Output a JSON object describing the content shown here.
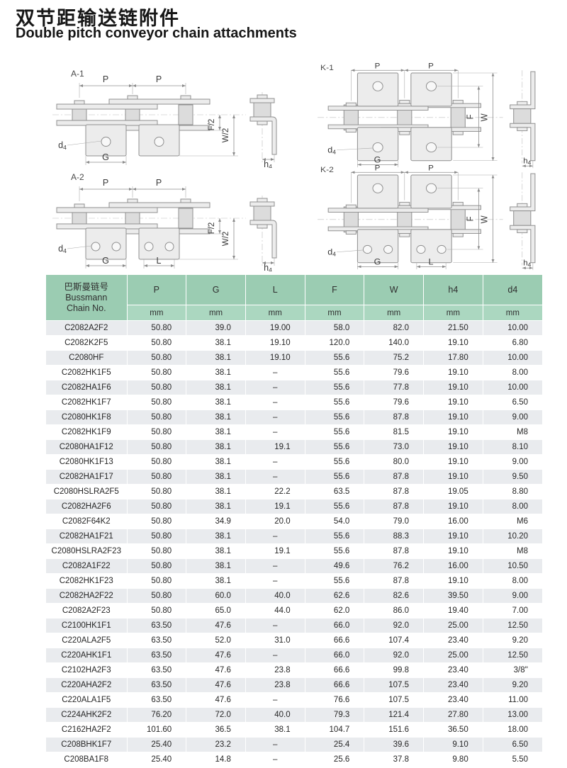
{
  "title": {
    "zh": "双节距输送链附件",
    "en": "Double pitch conveyor chain attachments"
  },
  "diagrams": {
    "a1": {
      "id": "A-1",
      "p1": "P",
      "p2": "P",
      "f": "F/2",
      "w": "W/2",
      "g": "G",
      "d": "d",
      "dsub": "4",
      "h": "h",
      "hsub": "4"
    },
    "k1": {
      "id": "K-1",
      "p1": "P",
      "p2": "P",
      "f": "F",
      "w": "W",
      "g": "G",
      "d": "d",
      "dsub": "4",
      "h": "h",
      "hsub": "4"
    },
    "a2": {
      "id": "A-2",
      "p1": "P",
      "p2": "P",
      "f": "F/2",
      "w": "W/2",
      "g": "G",
      "l": "L",
      "d": "d",
      "dsub": "4",
      "h": "h",
      "hsub": "4"
    },
    "k2": {
      "id": "K-2",
      "p1": "P",
      "p2": "P",
      "f": "F",
      "w": "W",
      "g": "G",
      "l": "L",
      "d": "d",
      "dsub": "4",
      "h": "h",
      "hsub": "4"
    }
  },
  "table": {
    "chain_header": {
      "zh": "巴斯曼链号",
      "en1": "Bussmann",
      "en2": "Chain No."
    },
    "columns": [
      {
        "label": "P",
        "unit": "mm"
      },
      {
        "label": "G",
        "unit": "mm"
      },
      {
        "label": "L",
        "unit": "mm"
      },
      {
        "label": "F",
        "unit": "mm"
      },
      {
        "label": "W",
        "unit": "mm"
      },
      {
        "label": "h4",
        "unit": "mm"
      },
      {
        "label": "d4",
        "unit": "mm"
      }
    ],
    "rows": [
      {
        "chain_no": "C2082A2F2",
        "values": [
          "50.80",
          "39.0",
          "19.00",
          "58.0",
          "82.0",
          "21.50",
          "10.00"
        ]
      },
      {
        "chain_no": "C2082K2F5",
        "values": [
          "50.80",
          "38.1",
          "19.10",
          "120.0",
          "140.0",
          "19.10",
          "6.80"
        ]
      },
      {
        "chain_no": "C2080HF",
        "values": [
          "50.80",
          "38.1",
          "19.10",
          "55.6",
          "75.2",
          "17.80",
          "10.00"
        ]
      },
      {
        "chain_no": "C2082HK1F5",
        "values": [
          "50.80",
          "38.1",
          "–",
          "55.6",
          "79.6",
          "19.10",
          "8.00"
        ]
      },
      {
        "chain_no": "C2082HA1F6",
        "values": [
          "50.80",
          "38.1",
          "–",
          "55.6",
          "77.8",
          "19.10",
          "10.00"
        ]
      },
      {
        "chain_no": "C2082HK1F7",
        "values": [
          "50.80",
          "38.1",
          "–",
          "55.6",
          "79.6",
          "19.10",
          "6.50"
        ]
      },
      {
        "chain_no": "C2080HK1F8",
        "values": [
          "50.80",
          "38.1",
          "–",
          "55.6",
          "87.8",
          "19.10",
          "9.00"
        ]
      },
      {
        "chain_no": "C2082HK1F9",
        "values": [
          "50.80",
          "38.1",
          "–",
          "55.6",
          "81.5",
          "19.10",
          "M8"
        ]
      },
      {
        "chain_no": "C2080HA1F12",
        "values": [
          "50.80",
          "38.1",
          "19.1",
          "55.6",
          "73.0",
          "19.10",
          "8.10"
        ]
      },
      {
        "chain_no": "C2080HK1F13",
        "values": [
          "50.80",
          "38.1",
          "–",
          "55.6",
          "80.0",
          "19.10",
          "9.00"
        ]
      },
      {
        "chain_no": "C2082HA1F17",
        "values": [
          "50.80",
          "38.1",
          "–",
          "55.6",
          "87.8",
          "19.10",
          "9.50"
        ]
      },
      {
        "chain_no": "C2080HSLRA2F5",
        "values": [
          "50.80",
          "38.1",
          "22.2",
          "63.5",
          "87.8",
          "19.05",
          "8.80"
        ]
      },
      {
        "chain_no": "C2082HA2F6",
        "values": [
          "50.80",
          "38.1",
          "19.1",
          "55.6",
          "87.8",
          "19.10",
          "8.00"
        ]
      },
      {
        "chain_no": "C2082F64K2",
        "values": [
          "50.80",
          "34.9",
          "20.0",
          "54.0",
          "79.0",
          "16.00",
          "M6"
        ]
      },
      {
        "chain_no": "C2082HA1F21",
        "values": [
          "50.80",
          "38.1",
          "–",
          "55.6",
          "88.3",
          "19.10",
          "10.20"
        ]
      },
      {
        "chain_no": "C2080HSLRA2F23",
        "values": [
          "50.80",
          "38.1",
          "19.1",
          "55.6",
          "87.8",
          "19.10",
          "M8"
        ]
      },
      {
        "chain_no": "C2082A1F22",
        "values": [
          "50.80",
          "38.1",
          "–",
          "49.6",
          "76.2",
          "16.00",
          "10.50"
        ]
      },
      {
        "chain_no": "C2082HK1F23",
        "values": [
          "50.80",
          "38.1",
          "–",
          "55.6",
          "87.8",
          "19.10",
          "8.00"
        ]
      },
      {
        "chain_no": "C2082HA2F22",
        "values": [
          "50.80",
          "60.0",
          "40.0",
          "62.6",
          "82.6",
          "39.50",
          "9.00"
        ]
      },
      {
        "chain_no": "C2082A2F23",
        "values": [
          "50.80",
          "65.0",
          "44.0",
          "62.0",
          "86.0",
          "19.40",
          "7.00"
        ]
      },
      {
        "chain_no": "C2100HK1F1",
        "values": [
          "63.50",
          "47.6",
          "–",
          "66.0",
          "92.0",
          "25.00",
          "12.50"
        ]
      },
      {
        "chain_no": "C220ALA2F5",
        "values": [
          "63.50",
          "52.0",
          "31.0",
          "66.6",
          "107.4",
          "23.40",
          "9.20"
        ]
      },
      {
        "chain_no": "C220AHK1F1",
        "values": [
          "63.50",
          "47.6",
          "–",
          "66.0",
          "92.0",
          "25.00",
          "12.50"
        ]
      },
      {
        "chain_no": "C2102HA2F3",
        "values": [
          "63.50",
          "47.6",
          "23.8",
          "66.6",
          "99.8",
          "23.40",
          "3/8''"
        ]
      },
      {
        "chain_no": "C220AHA2F2",
        "values": [
          "63.50",
          "47.6",
          "23.8",
          "66.6",
          "107.5",
          "23.40",
          "9.20"
        ]
      },
      {
        "chain_no": "C220ALA1F5",
        "values": [
          "63.50",
          "47.6",
          "–",
          "76.6",
          "107.5",
          "23.40",
          "11.00"
        ]
      },
      {
        "chain_no": "C224AHK2F2",
        "values": [
          "76.20",
          "72.0",
          "40.0",
          "79.3",
          "121.4",
          "27.80",
          "13.00"
        ]
      },
      {
        "chain_no": "C2162HA2F2",
        "values": [
          "101.60",
          "36.5",
          "38.1",
          "104.7",
          "151.6",
          "36.50",
          "18.00"
        ]
      },
      {
        "chain_no": "C208BHK1F7",
        "values": [
          "25.40",
          "23.2",
          "–",
          "25.4",
          "39.6",
          "9.10",
          "6.50"
        ]
      },
      {
        "chain_no": "C208BA1F8",
        "values": [
          "25.40",
          "14.8",
          "–",
          "25.6",
          "37.8",
          "9.80",
          "5.50"
        ]
      }
    ]
  },
  "colors": {
    "header_green": "#9bccb2",
    "header_green_light": "#abd7c0",
    "row_alt": "#e9ebee"
  }
}
